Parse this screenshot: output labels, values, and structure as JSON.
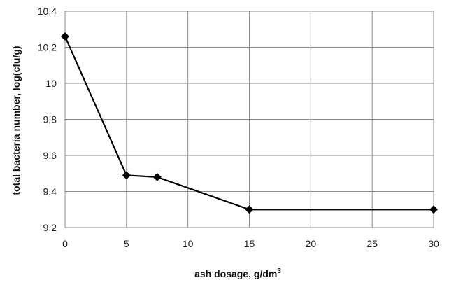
{
  "chart_data": {
    "type": "line",
    "title": "",
    "xlabel": "ash dosage, g/dm",
    "xlabel_superscript": "3",
    "ylabel": "total bacteria number, log(cfu/g)",
    "x_ticks": [
      0,
      5,
      10,
      15,
      20,
      25,
      30
    ],
    "y_ticks": [
      "9,2",
      "9,4",
      "9,6",
      "9,8",
      "10",
      "10,2",
      "10,4"
    ],
    "xlim": [
      0,
      30
    ],
    "ylim": [
      9.2,
      10.4
    ],
    "grid": true,
    "legend": "none",
    "series": [
      {
        "x": [
          0,
          5,
          7.5,
          15,
          30
        ],
        "y": [
          10.26,
          9.49,
          9.48,
          9.3,
          9.3
        ],
        "color": "#000000",
        "marker": "diamond"
      }
    ]
  }
}
